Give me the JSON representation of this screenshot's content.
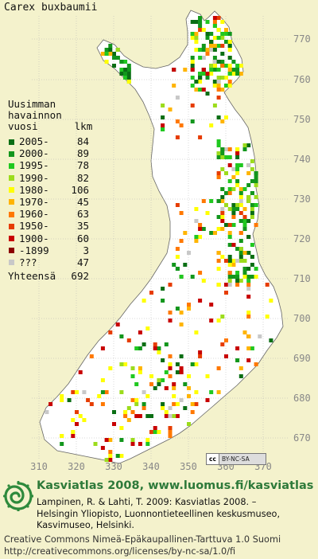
{
  "title": "Carex buxbaumii",
  "legend": {
    "heading": [
      "Uusimman",
      "havainnon"
    ],
    "col_year": "vuosi",
    "col_count": "lkm",
    "items": [
      {
        "label": "2005-",
        "count": "84",
        "color": "#0a6e14"
      },
      {
        "label": "2000-",
        "count": "89",
        "color": "#12961c"
      },
      {
        "label": "1995-",
        "count": "78",
        "color": "#20c820"
      },
      {
        "label": "1990-",
        "count": "82",
        "color": "#9cdc1c"
      },
      {
        "label": "1980-",
        "count": "106",
        "color": "#ffff00"
      },
      {
        "label": "1970-",
        "count": "45",
        "color": "#ffb400"
      },
      {
        "label": "1960-",
        "count": "63",
        "color": "#ff7800"
      },
      {
        "label": "1950-",
        "count": "35",
        "color": "#e63c00"
      },
      {
        "label": "1900-",
        "count": "60",
        "color": "#c80000"
      },
      {
        "label": "-1899",
        "count": "3",
        "color": "#8c0000"
      },
      {
        "label": "???",
        "count": "47",
        "color": "#c8c8c8"
      }
    ],
    "total_label": "Yhteensä",
    "total_count": "692"
  },
  "axes": {
    "x_ticks": [
      "310",
      "320",
      "330",
      "340",
      "350",
      "360",
      "370"
    ],
    "y_ticks": [
      "770",
      "760",
      "750",
      "740",
      "730",
      "720",
      "710",
      "700",
      "690",
      "680",
      "670"
    ]
  },
  "map_colors": {
    "land": "#ffffff",
    "background": "#f4f2cc",
    "gridline": "#b4b4b4",
    "border": "#666666"
  },
  "badge": {
    "mark": "cc",
    "text": "BY-NC-SA"
  },
  "footer": {
    "atlas": "Kasviatlas 2008, www.luomus.fi/kasviatlas",
    "citation": [
      "Lampinen, R. & Lahti, T. 2009: Kasviatlas 2008. –",
      "Helsingin Yliopisto, Luonnontieteellinen keskusmuseo,",
      "Kasvimuseo, Helsinki."
    ],
    "license": [
      "Creative Commons Nimeä-Epäkaupallinen-Tarttuva 1.0 Suomi",
      "http://creativecommons.org/licenses/by-nc-sa/1.0/fi"
    ]
  }
}
